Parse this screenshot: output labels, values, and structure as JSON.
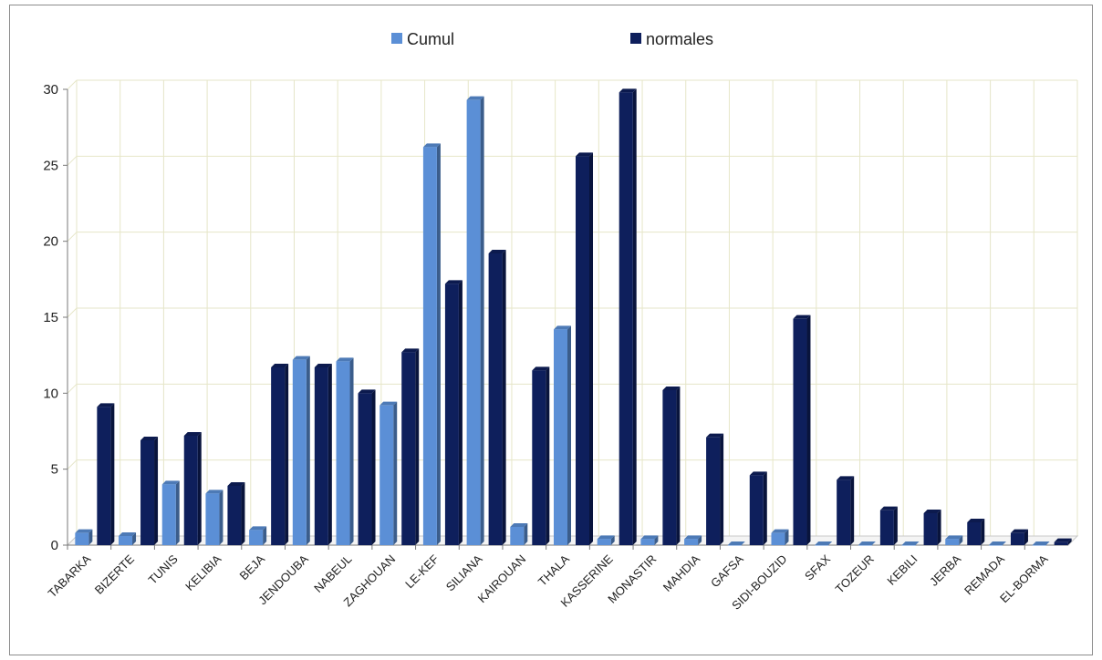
{
  "chart_data": {
    "type": "bar",
    "categories": [
      "TABARKA",
      "BIZERTE",
      "TUNIS",
      "KELIBIA",
      "BEJA",
      "JENDOUBA",
      "NABEUL",
      "ZAGHOUAN",
      "LE-KEF",
      "SILIANA",
      "KAIROUAN",
      "THALA",
      "KASSERINE",
      "MONASTIR",
      "MAHDIA",
      "GAFSA",
      "SIDI-BOUZID",
      "SFAX",
      "TOZEUR",
      "KEBILI",
      "JERBA",
      "REMADA",
      "EL-BORMA"
    ],
    "series": [
      {
        "name": "Cumul",
        "color": "#5b8fd6",
        "values": [
          0.8,
          0.6,
          4.0,
          3.4,
          1.0,
          12.2,
          12.1,
          9.2,
          26.2,
          29.3,
          1.2,
          14.2,
          0.4,
          0.4,
          0.4,
          0.0,
          0.8,
          0.0,
          0.0,
          0.0,
          0.4,
          0.0,
          0.0
        ]
      },
      {
        "name": "normales",
        "color": "#0e1f5c",
        "values": [
          9.1,
          6.9,
          7.2,
          3.9,
          11.7,
          11.7,
          10.0,
          12.7,
          17.2,
          19.2,
          11.5,
          25.6,
          29.8,
          10.2,
          7.1,
          4.6,
          14.9,
          4.3,
          2.3,
          2.1,
          1.5,
          0.8,
          0.2
        ]
      }
    ],
    "ylim": [
      0,
      30
    ],
    "yticks": [
      0,
      5,
      10,
      15,
      20,
      25,
      30
    ],
    "grid": true,
    "legend_position": "top"
  }
}
